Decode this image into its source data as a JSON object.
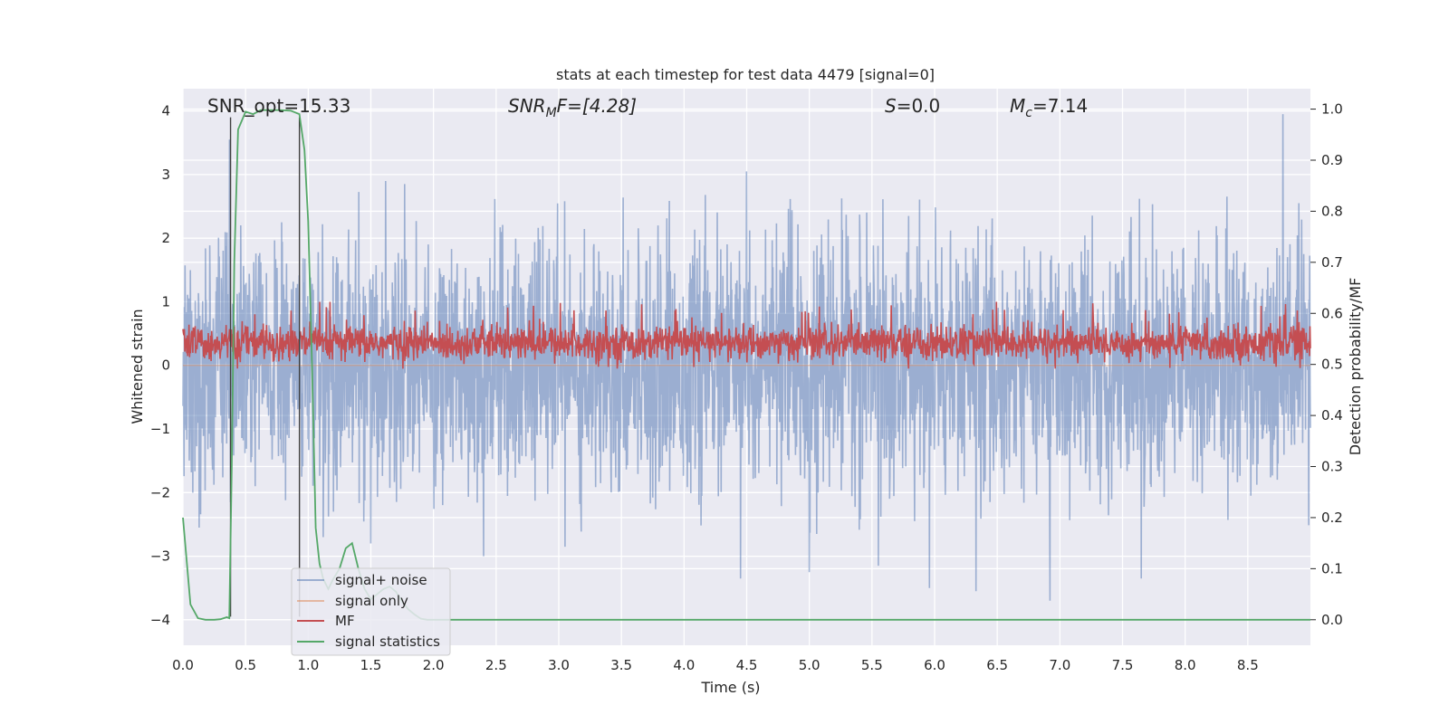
{
  "chart_data": {
    "type": "line",
    "title": "stats at each timestep for test data 4479 [signal=0]",
    "xlabel": "Time (s)",
    "ylabel_left": "Whitened strain",
    "ylabel_right": "Detection probability/MF",
    "xlim": [
      0.0,
      9.0
    ],
    "ylim_left": [
      -4.4,
      4.35
    ],
    "ylim_right": [
      -0.05,
      1.04
    ],
    "xticks": [
      0.0,
      0.5,
      1.0,
      1.5,
      2.0,
      2.5,
      3.0,
      3.5,
      4.0,
      4.5,
      5.0,
      5.5,
      6.0,
      6.5,
      7.0,
      7.5,
      8.0,
      8.5
    ],
    "xtick_labels": [
      "0.0",
      "0.5",
      "1.0",
      "1.5",
      "2.0",
      "2.5",
      "3.0",
      "3.5",
      "4.0",
      "4.5",
      "5.0",
      "5.5",
      "6.0",
      "6.5",
      "7.0",
      "7.5",
      "8.0",
      "8.5"
    ],
    "yticks_left": [
      4,
      3,
      2,
      1,
      0,
      -1,
      -2,
      -3,
      -4
    ],
    "ytick_labels_left": [
      "4",
      "3",
      "2",
      "1",
      "0",
      "−1",
      "−2",
      "−3",
      "−4"
    ],
    "yticks_right": [
      1.0,
      0.9,
      0.8,
      0.7,
      0.6,
      0.5,
      0.4,
      0.3,
      0.2,
      0.1,
      0.0
    ],
    "ytick_labels_right": [
      "1.0",
      "0.9",
      "0.8",
      "0.7",
      "0.6",
      "0.5",
      "0.4",
      "0.3",
      "0.2",
      "0.1",
      "0.0"
    ],
    "grid": true,
    "background": "#eaeaf2",
    "annotations": {
      "snr_opt": "SNR_opt=15.33",
      "snr_mf_var": "SNR",
      "snr_mf_sub": "M",
      "snr_mf_rest": "F=[4.28]",
      "s_var": "S",
      "s_rest": "=0.0",
      "mc_var": "M",
      "mc_sub": "c",
      "mc_rest": "=7.14"
    },
    "legend_position": "lower-left",
    "series": [
      {
        "name": "signal+ noise",
        "color": "#4c72b0",
        "alpha": 0.5,
        "axis": "left",
        "description": "dense whitened-strain noise, roughly within [-2.5, 2.5], peaks to about ±4",
        "spikes": [
          {
            "x": 0.37,
            "y": 3.55
          },
          {
            "x": 0.38,
            "y": -2.15
          },
          {
            "x": 1.77,
            "y": 2.85
          },
          {
            "x": 4.5,
            "y": 3.05
          },
          {
            "x": 4.45,
            "y": -3.35
          },
          {
            "x": 5.0,
            "y": -3.25
          },
          {
            "x": 5.55,
            "y": -3.15
          },
          {
            "x": 5.96,
            "y": -3.5
          },
          {
            "x": 6.33,
            "y": -4.0
          },
          {
            "x": 6.33,
            "y": -3.55
          },
          {
            "x": 6.92,
            "y": -3.7
          },
          {
            "x": 8.78,
            "y": 3.95
          },
          {
            "x": 0.13,
            "y": -2.55
          },
          {
            "x": 1.5,
            "y": -2.8
          },
          {
            "x": 7.65,
            "y": -3.35
          },
          {
            "x": 3.05,
            "y": -2.85
          },
          {
            "x": 2.4,
            "y": -3.0
          }
        ]
      },
      {
        "name": "signal only",
        "color": "#dd8452",
        "alpha": 0.5,
        "axis": "left",
        "description": "zero (no signal present)"
      },
      {
        "name": "MF",
        "color": "#c44e52",
        "alpha": 1.0,
        "axis": "left",
        "description": "matched filter output, band roughly 0 to 0.75, a few peaks near 1"
      },
      {
        "name": "signal statistics",
        "color": "#55a868",
        "alpha": 1.0,
        "axis": "right",
        "x": [
          0.0,
          0.06,
          0.12,
          0.18,
          0.25,
          0.3,
          0.35,
          0.37,
          0.39,
          0.41,
          0.44,
          0.5,
          0.56,
          0.62,
          0.7,
          0.78,
          0.86,
          0.93,
          0.97,
          1.0,
          1.03,
          1.06,
          1.09,
          1.12,
          1.16,
          1.2,
          1.25,
          1.3,
          1.35,
          1.4,
          1.45,
          1.5,
          1.55,
          1.6,
          1.65,
          1.7,
          1.75,
          1.8,
          1.85,
          1.9,
          1.95,
          2.0,
          2.5,
          3.0,
          3.5,
          4.0,
          4.5,
          5.0,
          5.5,
          6.0,
          6.5,
          7.0,
          7.5,
          8.0,
          8.5,
          9.0
        ],
        "values": [
          0.2,
          0.03,
          0.003,
          0.0,
          0.0,
          0.001,
          0.005,
          0.003,
          0.3,
          0.7,
          0.96,
          0.995,
          0.99,
          0.998,
          0.998,
          0.998,
          0.997,
          0.99,
          0.92,
          0.78,
          0.5,
          0.18,
          0.11,
          0.08,
          0.06,
          0.08,
          0.1,
          0.14,
          0.15,
          0.1,
          0.06,
          0.04,
          0.05,
          0.06,
          0.065,
          0.055,
          0.035,
          0.02,
          0.01,
          0.002,
          0.0,
          0.0,
          0.0,
          0.0,
          0.0,
          0.0,
          0.0,
          0.0,
          0.0,
          0.0,
          0.0,
          0.0,
          0.0,
          0.0,
          0.0,
          0.0
        ]
      }
    ],
    "vlines": [
      {
        "x": 0.38,
        "color": "#404040"
      },
      {
        "x": 0.93,
        "color": "#404040"
      }
    ]
  }
}
